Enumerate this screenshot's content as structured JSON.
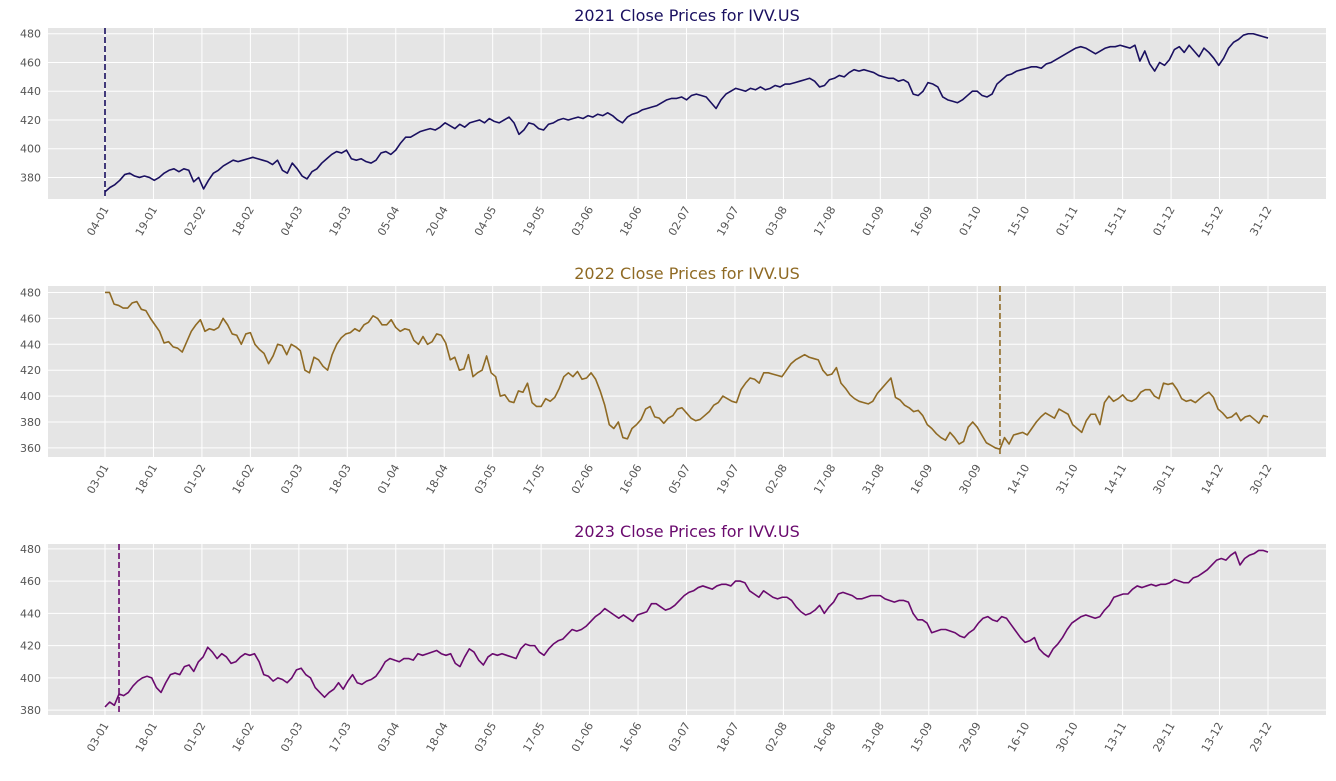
{
  "chart_data": [
    {
      "type": "line",
      "title": "2021 Close Prices for IVV.US",
      "color": "#1a1060",
      "yticks": [
        380,
        400,
        420,
        440,
        460,
        480
      ],
      "ylim": [
        365,
        484
      ],
      "xticks": [
        "04-01",
        "19-01",
        "02-02",
        "18-02",
        "04-03",
        "19-03",
        "05-04",
        "20-04",
        "04-05",
        "19-05",
        "03-06",
        "18-06",
        "02-07",
        "19-07",
        "03-08",
        "17-08",
        "01-09",
        "16-09",
        "01-10",
        "15-10",
        "01-11",
        "15-11",
        "01-12",
        "15-12",
        "31-12"
      ],
      "marker_index": 0,
      "grid": true,
      "values": [
        370,
        373,
        375,
        378,
        382,
        383,
        381,
        380,
        381,
        380,
        378,
        380,
        383,
        385,
        386,
        384,
        386,
        385,
        377,
        380,
        372,
        378,
        383,
        385,
        388,
        390,
        392,
        391,
        392,
        393,
        394,
        393,
        392,
        391,
        389,
        392,
        385,
        383,
        390,
        386,
        381,
        379,
        384,
        386,
        390,
        393,
        396,
        398,
        397,
        399,
        393,
        392,
        393,
        391,
        390,
        392,
        397,
        398,
        396,
        399,
        404,
        408,
        408,
        410,
        412,
        413,
        414,
        413,
        415,
        418,
        416,
        414,
        417,
        415,
        418,
        419,
        420,
        418,
        421,
        419,
        418,
        420,
        422,
        418,
        410,
        413,
        418,
        417,
        414,
        413,
        417,
        418,
        420,
        421,
        420,
        421,
        422,
        421,
        423,
        422,
        424,
        423,
        425,
        423,
        420,
        418,
        422,
        424,
        425,
        427,
        428,
        429,
        430,
        432,
        434,
        435,
        435,
        436,
        434,
        437,
        438,
        437,
        436,
        432,
        428,
        434,
        438,
        440,
        442,
        441,
        440,
        442,
        441,
        443,
        441,
        442,
        444,
        443,
        445,
        445,
        446,
        447,
        448,
        449,
        447,
        443,
        444,
        448,
        449,
        451,
        450,
        453,
        455,
        454,
        455,
        454,
        453,
        451,
        450,
        449,
        449,
        447,
        448,
        446,
        438,
        437,
        440,
        446,
        445,
        443,
        436,
        434,
        433,
        432,
        434,
        437,
        440,
        440,
        437,
        436,
        438,
        445,
        448,
        451,
        452,
        454,
        455,
        456,
        457,
        457,
        456,
        459,
        460,
        462,
        464,
        466,
        468,
        470,
        471,
        470,
        468,
        466,
        468,
        470,
        471,
        471,
        472,
        471,
        470,
        472,
        461,
        468,
        459,
        454,
        460,
        458,
        462,
        469,
        471,
        467,
        472,
        468,
        464,
        470,
        467,
        463,
        458,
        463,
        470,
        474,
        476,
        479,
        480,
        480,
        479,
        478,
        477
      ]
    },
    {
      "type": "line",
      "title": "2022 Close Prices for IVV.US",
      "color": "#8f6a24",
      "yticks": [
        360,
        380,
        400,
        420,
        440,
        460,
        480
      ],
      "ylim": [
        353,
        485
      ],
      "xticks": [
        "03-01",
        "18-01",
        "01-02",
        "16-02",
        "03-03",
        "18-03",
        "01-04",
        "18-04",
        "03-05",
        "17-05",
        "02-06",
        "16-06",
        "05-07",
        "19-07",
        "02-08",
        "17-08",
        "31-08",
        "16-09",
        "30-09",
        "14-10",
        "31-10",
        "14-11",
        "30-11",
        "14-12",
        "30-12"
      ],
      "marker_index": 197,
      "grid": true,
      "values": [
        480,
        480,
        471,
        470,
        468,
        468,
        472,
        473,
        467,
        466,
        460,
        455,
        450,
        441,
        442,
        438,
        437,
        434,
        442,
        450,
        455,
        459,
        450,
        452,
        451,
        453,
        460,
        455,
        448,
        447,
        440,
        448,
        449,
        440,
        436,
        433,
        425,
        431,
        440,
        439,
        432,
        440,
        438,
        435,
        420,
        418,
        430,
        428,
        423,
        420,
        432,
        440,
        445,
        448,
        449,
        452,
        450,
        455,
        457,
        462,
        460,
        455,
        455,
        459,
        453,
        450,
        452,
        451,
        443,
        440,
        446,
        440,
        442,
        448,
        447,
        441,
        428,
        430,
        420,
        421,
        432,
        415,
        418,
        420,
        431,
        418,
        415,
        400,
        401,
        396,
        395,
        404,
        403,
        410,
        395,
        392,
        392,
        398,
        396,
        399,
        406,
        415,
        418,
        415,
        419,
        413,
        414,
        418,
        413,
        404,
        393,
        378,
        375,
        380,
        368,
        367,
        375,
        378,
        382,
        390,
        392,
        384,
        383,
        379,
        383,
        385,
        390,
        391,
        387,
        383,
        381,
        382,
        385,
        388,
        393,
        395,
        400,
        398,
        396,
        395,
        405,
        410,
        414,
        413,
        410,
        418,
        418,
        417,
        416,
        415,
        420,
        425,
        428,
        430,
        432,
        430,
        429,
        428,
        420,
        416,
        417,
        422,
        410,
        406,
        401,
        398,
        396,
        395,
        394,
        396,
        402,
        406,
        410,
        414,
        399,
        397,
        393,
        391,
        388,
        389,
        385,
        378,
        375,
        371,
        368,
        366,
        372,
        368,
        363,
        365,
        376,
        380,
        376,
        370,
        364,
        362,
        360,
        359,
        368,
        363,
        370,
        371,
        372,
        370,
        375,
        380,
        384,
        387,
        385,
        383,
        390,
        388,
        386,
        378,
        375,
        372,
        381,
        386,
        386,
        378,
        395,
        400,
        396,
        398,
        401,
        397,
        396,
        398,
        403,
        405,
        405,
        400,
        398,
        410,
        409,
        410,
        405,
        398,
        396,
        397,
        395,
        398,
        401,
        403,
        399,
        390,
        387,
        383,
        384,
        387,
        381,
        384,
        385,
        382,
        379,
        385,
        384
      ]
    },
    {
      "type": "line",
      "title": "2023 Close Prices for IVV.US",
      "color": "#6a0a6e",
      "yticks": [
        380,
        400,
        420,
        440,
        460,
        480
      ],
      "ylim": [
        377,
        483
      ],
      "xticks": [
        "03-01",
        "18-01",
        "01-02",
        "16-02",
        "03-03",
        "17-03",
        "03-04",
        "18-04",
        "03-05",
        "17-05",
        "01-06",
        "16-06",
        "03-07",
        "18-07",
        "02-08",
        "16-08",
        "31-08",
        "15-09",
        "29-09",
        "16-10",
        "30-10",
        "13-11",
        "29-11",
        "13-12",
        "29-12"
      ],
      "marker_index": 3,
      "grid": true,
      "values": [
        382,
        385,
        383,
        390,
        389,
        391,
        395,
        398,
        400,
        401,
        400,
        394,
        391,
        397,
        402,
        403,
        402,
        407,
        408,
        404,
        410,
        413,
        419,
        416,
        412,
        415,
        413,
        409,
        410,
        413,
        415,
        414,
        415,
        410,
        402,
        401,
        398,
        400,
        399,
        397,
        400,
        405,
        406,
        402,
        400,
        394,
        391,
        388,
        391,
        393,
        397,
        393,
        398,
        402,
        397,
        396,
        398,
        399,
        401,
        405,
        410,
        412,
        411,
        410,
        412,
        412,
        411,
        415,
        414,
        415,
        416,
        417,
        415,
        414,
        415,
        409,
        407,
        413,
        418,
        416,
        411,
        408,
        413,
        415,
        414,
        415,
        414,
        413,
        412,
        418,
        421,
        420,
        420,
        416,
        414,
        418,
        421,
        423,
        424,
        427,
        430,
        429,
        430,
        432,
        435,
        438,
        440,
        443,
        441,
        439,
        437,
        439,
        437,
        435,
        439,
        440,
        441,
        446,
        446,
        444,
        442,
        443,
        445,
        448,
        451,
        453,
        454,
        456,
        457,
        456,
        455,
        457,
        458,
        458,
        457,
        460,
        460,
        459,
        454,
        452,
        450,
        454,
        452,
        450,
        449,
        450,
        450,
        448,
        444,
        441,
        439,
        440,
        442,
        445,
        440,
        444,
        447,
        452,
        453,
        452,
        451,
        449,
        449,
        450,
        451,
        451,
        451,
        449,
        448,
        447,
        448,
        448,
        447,
        440,
        436,
        436,
        434,
        428,
        429,
        430,
        430,
        429,
        428,
        426,
        425,
        428,
        430,
        434,
        437,
        438,
        436,
        435,
        438,
        437,
        433,
        429,
        425,
        422,
        423,
        425,
        418,
        415,
        413,
        418,
        421,
        425,
        430,
        434,
        436,
        438,
        439,
        438,
        437,
        438,
        442,
        445,
        450,
        451,
        452,
        452,
        455,
        457,
        456,
        457,
        458,
        457,
        458,
        458,
        459,
        461,
        460,
        459,
        459,
        462,
        463,
        465,
        467,
        470,
        473,
        474,
        473,
        476,
        478,
        470,
        474,
        476,
        477,
        479,
        479,
        478
      ]
    }
  ]
}
